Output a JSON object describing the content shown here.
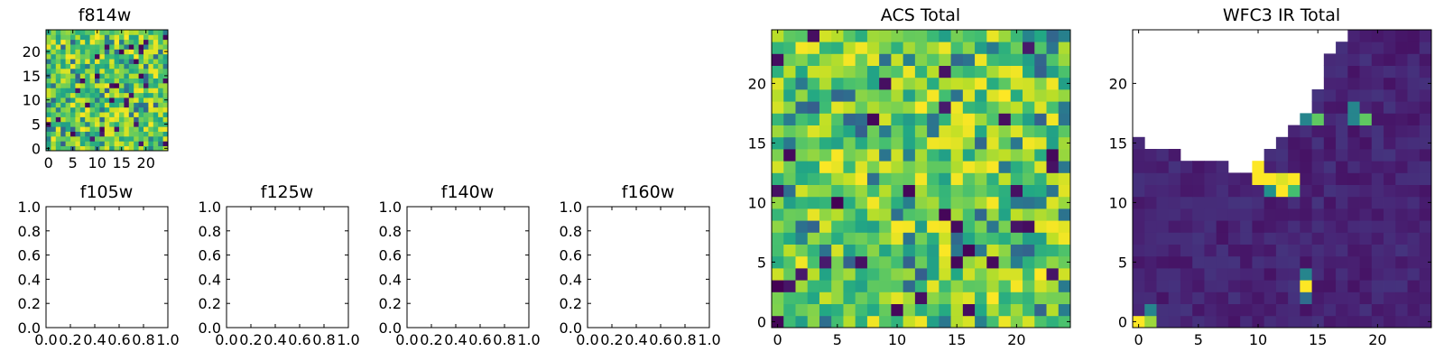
{
  "chart_data": [
    {
      "id": "f814w",
      "type": "heatmap",
      "title": "f814w",
      "grid_size": [
        25,
        25
      ],
      "colormap": "viridis",
      "xlim": [
        -0.5,
        24.5
      ],
      "ylim": [
        -0.5,
        24.5
      ],
      "xticks": [
        0,
        5,
        10,
        15,
        20
      ],
      "xtick_labels": [
        "0",
        "5",
        "10",
        "15",
        "20"
      ],
      "yticks": [
        0,
        5,
        10,
        15,
        20
      ],
      "ytick_labels": [
        "0",
        "5",
        "10",
        "15",
        "20"
      ],
      "values_description_note": "",
      "value_range": [
        0,
        1
      ],
      "distribution": "mostly high values (green-yellow) with scattered low (dark purple) pixels"
    },
    {
      "id": "f105w",
      "type": "heatmap",
      "title": "f105w",
      "empty": true,
      "xlim": [
        0,
        1
      ],
      "ylim": [
        0,
        1
      ],
      "xticks": [
        0,
        0.2,
        0.4,
        0.6,
        0.8,
        1.0
      ],
      "xtick_labels": [
        "0.0",
        "0.2",
        "0.4",
        "0.6",
        "0.8",
        "1.0"
      ],
      "yticks": [
        0,
        0.2,
        0.4,
        0.6,
        0.8,
        1.0
      ],
      "ytick_labels": [
        "0.0",
        "0.2",
        "0.4",
        "0.6",
        "0.8",
        "1.0"
      ]
    },
    {
      "id": "f125w",
      "type": "heatmap",
      "title": "f125w",
      "empty": true,
      "xlim": [
        0,
        1
      ],
      "ylim": [
        0,
        1
      ],
      "xticks": [
        0,
        0.2,
        0.4,
        0.6,
        0.8,
        1.0
      ],
      "xtick_labels": [
        "0.0",
        "0.2",
        "0.4",
        "0.6",
        "0.8",
        "1.0"
      ],
      "yticks": [
        0,
        0.2,
        0.4,
        0.6,
        0.8,
        1.0
      ],
      "ytick_labels": [
        "0.0",
        "0.2",
        "0.4",
        "0.6",
        "0.8",
        "1.0"
      ]
    },
    {
      "id": "f140w",
      "type": "heatmap",
      "title": "f140w",
      "empty": true,
      "xlim": [
        0,
        1
      ],
      "ylim": [
        0,
        1
      ],
      "xticks": [
        0,
        0.2,
        0.4,
        0.6,
        0.8,
        1.0
      ],
      "xtick_labels": [
        "0.0",
        "0.2",
        "0.4",
        "0.6",
        "0.8",
        "1.0"
      ],
      "yticks": [
        0,
        0.2,
        0.4,
        0.6,
        0.8,
        1.0
      ],
      "ytick_labels": [
        "0.0",
        "0.2",
        "0.4",
        "0.6",
        "0.8",
        "1.0"
      ]
    },
    {
      "id": "f160w",
      "type": "heatmap",
      "title": "f160w",
      "empty": true,
      "xlim": [
        0,
        1
      ],
      "ylim": [
        0,
        1
      ],
      "xticks": [
        0,
        0.2,
        0.4,
        0.6,
        0.8,
        1.0
      ],
      "xtick_labels": [
        "0.0",
        "0.2",
        "0.4",
        "0.6",
        "0.8",
        "1.0"
      ],
      "yticks": [
        0,
        0.2,
        0.4,
        0.6,
        0.8,
        1.0
      ],
      "ytick_labels": [
        "0.0",
        "0.2",
        "0.4",
        "0.6",
        "0.8",
        "1.0"
      ]
    },
    {
      "id": "acs_total",
      "type": "heatmap",
      "title": "ACS Total",
      "grid_size": [
        25,
        25
      ],
      "colormap": "viridis",
      "xlim": [
        -0.5,
        24.5
      ],
      "ylim": [
        -0.5,
        24.5
      ],
      "xticks": [
        0,
        5,
        10,
        15,
        20
      ],
      "xtick_labels": [
        "0",
        "5",
        "10",
        "15",
        "20"
      ],
      "yticks": [
        0,
        5,
        10,
        15,
        20
      ],
      "ytick_labels": [
        "0",
        "5",
        "10",
        "15",
        "20"
      ],
      "value_range": [
        0,
        1
      ],
      "distribution": "mostly high values (green-yellow) with scattered low (dark purple) pixels"
    },
    {
      "id": "wfc3_ir_total",
      "type": "heatmap",
      "title": "WFC3 IR Total",
      "grid_size": [
        25,
        25
      ],
      "colormap": "viridis",
      "xlim": [
        -0.5,
        24.5
      ],
      "ylim": [
        -0.5,
        24.5
      ],
      "xticks": [
        0,
        5,
        10,
        15,
        20
      ],
      "xtick_labels": [
        "0",
        "5",
        "10",
        "15",
        "20"
      ],
      "yticks": [
        0,
        5,
        10,
        15,
        20
      ],
      "ytick_labels": [
        "0",
        "5",
        "10",
        "15",
        "20"
      ],
      "value_range": [
        0,
        1
      ],
      "missing_columns_top_row": [
        25,
        25,
        25,
        25,
        25,
        25,
        25,
        25,
        25,
        25,
        25,
        25,
        25,
        25,
        25,
        25,
        25,
        25,
        25,
        25,
        25,
        25,
        25,
        25,
        25
      ],
      "missing_region": {
        "description": "upper-left region has no data (white)",
        "top_row_by_column": [
          15,
          14,
          14,
          14,
          13,
          13,
          13,
          13,
          12,
          12,
          13,
          14,
          15,
          16,
          17,
          19,
          22,
          23,
          24,
          24,
          24,
          24,
          24,
          24,
          24
        ]
      },
      "bright_pixels": [
        {
          "x": 10,
          "y": 12,
          "value": 1.0
        },
        {
          "x": 10,
          "y": 13,
          "value": 1.0
        },
        {
          "x": 11,
          "y": 12,
          "value": 1.0
        },
        {
          "x": 12,
          "y": 12,
          "value": 0.95
        },
        {
          "x": 13,
          "y": 12,
          "value": 1.0
        },
        {
          "x": 11,
          "y": 11,
          "value": 0.5
        },
        {
          "x": 12,
          "y": 11,
          "value": 1.0
        },
        {
          "x": 13,
          "y": 11,
          "value": 0.7
        },
        {
          "x": 14,
          "y": 17,
          "value": 0.45
        },
        {
          "x": 15,
          "y": 17,
          "value": 0.75
        },
        {
          "x": 18,
          "y": 18,
          "value": 0.45
        },
        {
          "x": 18,
          "y": 17,
          "value": 0.45
        },
        {
          "x": 19,
          "y": 17,
          "value": 0.75
        },
        {
          "x": 14,
          "y": 4,
          "value": 0.45
        },
        {
          "x": 14,
          "y": 3,
          "value": 1.0
        },
        {
          "x": 14,
          "y": 2,
          "value": 0.35
        },
        {
          "x": 0,
          "y": 0,
          "value": 1.0
        },
        {
          "x": 1,
          "y": 0,
          "value": 0.85
        },
        {
          "x": 1,
          "y": 1,
          "value": 0.45
        }
      ],
      "background_value": 0.05
    }
  ]
}
